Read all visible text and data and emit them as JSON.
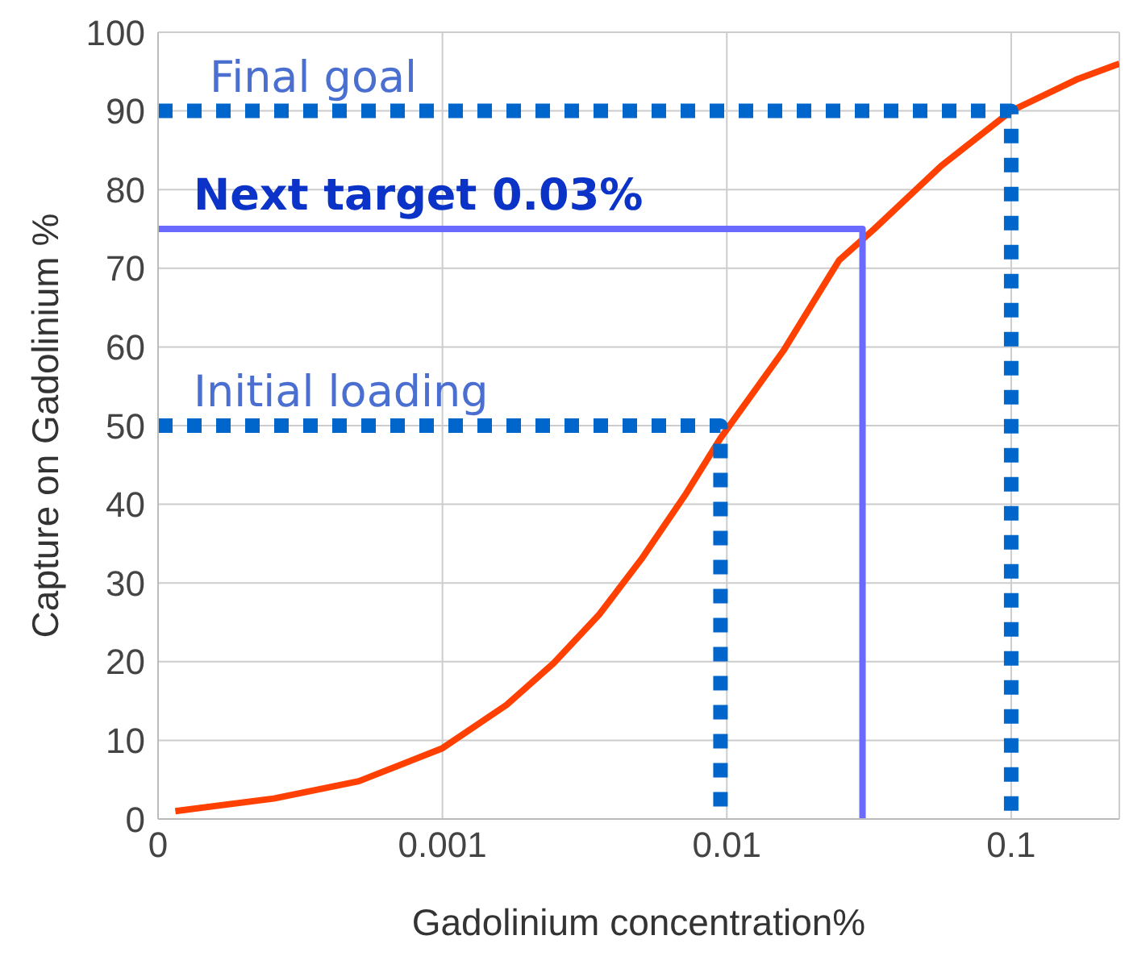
{
  "chart_data": {
    "type": "line",
    "xlabel": "Gadolinium concentration%",
    "ylabel": "Capture on  Gadolinium %",
    "log": "x",
    "grid": true,
    "marker": "none",
    "xlim": [
      0.0001,
      0.24
    ],
    "xticks": [
      {
        "value": 0.0001,
        "label": "0"
      },
      0.001,
      0.01,
      0.1
    ],
    "ylim": [
      0,
      100
    ],
    "yticks": [
      0,
      10,
      20,
      30,
      40,
      50,
      60,
      70,
      80,
      90,
      100
    ],
    "series": [
      {
        "color": "#ff4000",
        "x": [
          0.000115,
          0.000255,
          0.000508,
          0.001,
          0.00168,
          0.00246,
          0.00356,
          0.005,
          0.0072,
          0.0095,
          0.0158,
          0.0248,
          0.033,
          0.0567,
          0.1,
          0.17,
          0.24
        ],
        "values": [
          1,
          2.6,
          4.8,
          9,
          14.5,
          19.8,
          26,
          33,
          41.4,
          48.4,
          59.5,
          71,
          75,
          83,
          90,
          94,
          96
        ],
        "line_style": "solid"
      },
      {
        "color": "#0066cc",
        "x": [
          0.0001,
          0.0095,
          0.0095
        ],
        "values": [
          50,
          50,
          0
        ],
        "line_style": "dotted"
      },
      {
        "color": "#6a6aff",
        "x": [
          0.0001,
          0.03,
          0.03
        ],
        "values": [
          75,
          75,
          0
        ],
        "line_style": "solid"
      },
      {
        "color": "#0066cc",
        "x": [
          0.0001,
          0.1,
          0.1
        ],
        "values": [
          90,
          90,
          0
        ],
        "line_style": "dotted"
      }
    ],
    "annotations": [
      {
        "text": "Initial loading",
        "y": 50
      },
      {
        "text": "Next target 0.03%",
        "y": 75
      },
      {
        "text": "Final goal",
        "y": 90
      }
    ]
  }
}
